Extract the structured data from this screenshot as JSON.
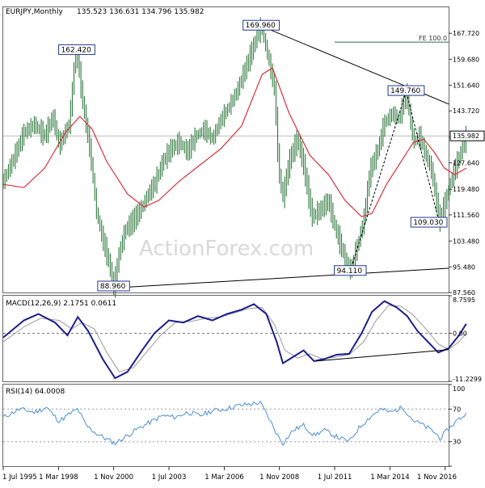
{
  "header": {
    "symbol": "EURJPY,Monthly",
    "ohlc": "135.523 136.631 134.796 135.982"
  },
  "watermark": "ActionForex.com",
  "chart_data": [
    {
      "type": "line",
      "subtype": "ohlc-monthly-with-sma",
      "title": "EURJPY,Monthly",
      "x_start": 1995.5,
      "x_end": 2017.0,
      "ylim": [
        87.56,
        175.76
      ],
      "y_ticks": [
        "167.720",
        "159.680",
        "151.640",
        "143.720",
        "135.600",
        "127.640",
        "119.480",
        "111.560",
        "103.480",
        "95.480",
        "87.560"
      ],
      "y_tick_values": [
        167.72,
        159.68,
        151.64,
        143.72,
        135.6,
        127.64,
        119.48,
        111.56,
        103.48,
        95.48,
        87.56
      ],
      "last_price": "135.982",
      "last_price_value": 135.982,
      "fe_label": "FE 100.0",
      "fe_level": 165.0,
      "price_series": [
        [
          1995.5,
          122.0
        ],
        [
          1996.0,
          129.0
        ],
        [
          1996.5,
          137.0
        ],
        [
          1997.0,
          139.5
        ],
        [
          1997.5,
          136.0
        ],
        [
          1997.9,
          142.0
        ],
        [
          1998.2,
          133.0
        ],
        [
          1998.7,
          140.0
        ],
        [
          1998.9,
          156.0
        ],
        [
          1999.05,
          162.42
        ],
        [
          1999.3,
          148.0
        ],
        [
          1999.7,
          131.0
        ],
        [
          2000.0,
          112.5
        ],
        [
          2000.3,
          104.0
        ],
        [
          2000.6,
          97.0
        ],
        [
          2000.83,
          88.96
        ],
        [
          2001.1,
          100.0
        ],
        [
          2001.4,
          107.0
        ],
        [
          2001.8,
          110.0
        ],
        [
          2002.2,
          114.0
        ],
        [
          2002.5,
          118.0
        ],
        [
          2002.8,
          121.0
        ],
        [
          2003.2,
          128.0
        ],
        [
          2003.6,
          132.0
        ],
        [
          2004.0,
          134.0
        ],
        [
          2004.4,
          131.0
        ],
        [
          2004.8,
          136.0
        ],
        [
          2005.2,
          138.0
        ],
        [
          2005.6,
          135.0
        ],
        [
          2006.0,
          141.0
        ],
        [
          2006.4,
          145.0
        ],
        [
          2006.8,
          150.0
        ],
        [
          2007.2,
          157.0
        ],
        [
          2007.6,
          164.0
        ],
        [
          2007.95,
          169.96
        ],
        [
          2008.3,
          160.0
        ],
        [
          2008.6,
          150.0
        ],
        [
          2008.8,
          125.0
        ],
        [
          2009.0,
          117.0
        ],
        [
          2009.3,
          128.0
        ],
        [
          2009.7,
          135.0
        ],
        [
          2010.0,
          127.0
        ],
        [
          2010.4,
          111.0
        ],
        [
          2010.8,
          113.0
        ],
        [
          2011.2,
          116.0
        ],
        [
          2011.5,
          108.0
        ],
        [
          2011.9,
          100.0
        ],
        [
          2012.25,
          94.11
        ],
        [
          2012.6,
          102.0
        ],
        [
          2012.9,
          110.0
        ],
        [
          2013.2,
          125.0
        ],
        [
          2013.6,
          132.0
        ],
        [
          2013.9,
          140.0
        ],
        [
          2014.3,
          143.0
        ],
        [
          2014.6,
          141.0
        ],
        [
          2014.95,
          149.76
        ],
        [
          2015.3,
          134.0
        ],
        [
          2015.6,
          136.0
        ],
        [
          2015.9,
          130.0
        ],
        [
          2016.2,
          125.0
        ],
        [
          2016.55,
          109.03
        ],
        [
          2016.9,
          117.0
        ],
        [
          2017.2,
          124.0
        ],
        [
          2017.6,
          131.0
        ],
        [
          2017.85,
          135.982
        ]
      ],
      "sma_series": [
        [
          1995.5,
          121.0
        ],
        [
          1996.5,
          120.0
        ],
        [
          1997.5,
          126.0
        ],
        [
          1998.5,
          137.0
        ],
        [
          1999.2,
          142.0
        ],
        [
          1999.8,
          138.0
        ],
        [
          2000.5,
          128.0
        ],
        [
          2001.5,
          118.0
        ],
        [
          2002.3,
          114.0
        ],
        [
          2003.0,
          116.0
        ],
        [
          2004.0,
          122.0
        ],
        [
          2005.0,
          127.0
        ],
        [
          2006.0,
          132.0
        ],
        [
          2007.0,
          139.0
        ],
        [
          2008.0,
          155.0
        ],
        [
          2008.5,
          157.0
        ],
        [
          2009.3,
          143.0
        ],
        [
          2010.3,
          130.0
        ],
        [
          2011.2,
          124.0
        ],
        [
          2012.0,
          116.0
        ],
        [
          2012.8,
          111.0
        ],
        [
          2013.3,
          112.0
        ],
        [
          2014.0,
          121.0
        ],
        [
          2014.7,
          128.0
        ],
        [
          2015.3,
          134.0
        ],
        [
          2015.8,
          135.0
        ],
        [
          2016.3,
          131.0
        ],
        [
          2016.8,
          126.0
        ],
        [
          2017.3,
          124.0
        ],
        [
          2017.85,
          126.0
        ]
      ],
      "trendlines": [
        {
          "name": "upper",
          "points": [
            [
              2007.95,
              169.96
            ],
            [
              2019.0,
              140.5
            ]
          ]
        },
        {
          "name": "lower",
          "points": [
            [
              2000.83,
              88.96
            ],
            [
              2019.0,
              95.8
            ]
          ]
        }
      ],
      "projection": [
        [
          2012.25,
          94.11
        ],
        [
          2014.95,
          149.76
        ],
        [
          2016.55,
          109.03
        ]
      ],
      "annotations": [
        {
          "text": "162.420",
          "x": 1999.05,
          "y": 162.42
        },
        {
          "text": "169.960",
          "x": 2007.95,
          "y": 169.96
        },
        {
          "text": "149.760",
          "x": 2014.95,
          "y": 149.76
        },
        {
          "text": "109.030",
          "x": 2016.55,
          "y": 109.03
        },
        {
          "text": "94.110",
          "x": 2012.25,
          "y": 94.11
        },
        {
          "text": "88.960",
          "x": 2000.83,
          "y": 88.96
        }
      ]
    },
    {
      "type": "line",
      "title": "MACD(12,26,9) 2.1751 0.0611",
      "ylim": [
        -11.2299,
        8.7595
      ],
      "y_ticks": [
        "8.7595",
        "0.00",
        "-11.2299"
      ],
      "y_tick_values": [
        8.7595,
        0.0,
        -11.2299
      ],
      "macd_series": [
        [
          1995.5,
          -1.0
        ],
        [
          1996.5,
          3.0
        ],
        [
          1997.2,
          4.5
        ],
        [
          1998.0,
          2.5
        ],
        [
          1998.6,
          -0.5
        ],
        [
          1999.1,
          3.8
        ],
        [
          1999.6,
          0.5
        ],
        [
          2000.3,
          -6.0
        ],
        [
          2000.9,
          -10.5
        ],
        [
          2001.5,
          -9.0
        ],
        [
          2002.2,
          -4.0
        ],
        [
          2002.8,
          0.0
        ],
        [
          2003.5,
          3.0
        ],
        [
          2004.2,
          2.5
        ],
        [
          2004.9,
          4.0
        ],
        [
          2005.6,
          3.0
        ],
        [
          2006.3,
          4.5
        ],
        [
          2007.0,
          5.5
        ],
        [
          2007.6,
          6.8
        ],
        [
          2008.2,
          4.5
        ],
        [
          2008.7,
          -2.0
        ],
        [
          2009.0,
          -7.0
        ],
        [
          2009.5,
          -5.5
        ],
        [
          2010.0,
          -4.0
        ],
        [
          2010.5,
          -6.5
        ],
        [
          2011.0,
          -6.0
        ],
        [
          2011.6,
          -5.0
        ],
        [
          2012.2,
          -4.8
        ],
        [
          2012.8,
          0.0
        ],
        [
          2013.3,
          5.0
        ],
        [
          2013.9,
          7.5
        ],
        [
          2014.5,
          6.0
        ],
        [
          2015.0,
          4.0
        ],
        [
          2015.5,
          0.5
        ],
        [
          2016.0,
          -2.0
        ],
        [
          2016.5,
          -4.5
        ],
        [
          2017.0,
          -3.5
        ],
        [
          2017.5,
          -0.5
        ],
        [
          2017.85,
          2.2
        ]
      ],
      "signal_series": [
        [
          1995.5,
          -2.0
        ],
        [
          1996.5,
          1.5
        ],
        [
          1997.3,
          3.5
        ],
        [
          1998.2,
          3.0
        ],
        [
          1998.8,
          1.0
        ],
        [
          1999.3,
          2.5
        ],
        [
          1999.9,
          1.0
        ],
        [
          2000.5,
          -4.5
        ],
        [
          2001.1,
          -9.0
        ],
        [
          2001.8,
          -8.0
        ],
        [
          2002.4,
          -4.5
        ],
        [
          2003.1,
          -0.5
        ],
        [
          2003.8,
          2.5
        ],
        [
          2004.6,
          2.8
        ],
        [
          2005.3,
          3.5
        ],
        [
          2006.0,
          3.8
        ],
        [
          2006.7,
          4.8
        ],
        [
          2007.4,
          5.8
        ],
        [
          2008.0,
          6.0
        ],
        [
          2008.6,
          2.0
        ],
        [
          2009.1,
          -4.0
        ],
        [
          2009.7,
          -5.8
        ],
        [
          2010.3,
          -4.8
        ],
        [
          2010.9,
          -6.0
        ],
        [
          2011.5,
          -5.6
        ],
        [
          2012.2,
          -5.0
        ],
        [
          2012.9,
          -2.0
        ],
        [
          2013.5,
          3.0
        ],
        [
          2014.1,
          6.5
        ],
        [
          2014.7,
          6.3
        ],
        [
          2015.3,
          4.2
        ],
        [
          2015.9,
          1.0
        ],
        [
          2016.5,
          -2.5
        ],
        [
          2017.0,
          -3.8
        ],
        [
          2017.5,
          -2.0
        ],
        [
          2017.85,
          0.06
        ]
      ],
      "trendline": [
        [
          2010.6,
          -6.5
        ],
        [
          2019.0,
          -3.0
        ]
      ]
    },
    {
      "type": "line",
      "title": "RSI(14) 64.0008",
      "ylim": [
        0,
        100
      ],
      "y_ticks": [
        "100",
        "70",
        "30",
        "0"
      ],
      "y_tick_values": [
        100,
        70,
        30,
        0
      ],
      "levels": [
        70,
        30
      ],
      "rsi_series": [
        [
          1995.5,
          60
        ],
        [
          1996.3,
          70
        ],
        [
          1997.0,
          66
        ],
        [
          1997.6,
          72
        ],
        [
          1998.2,
          55
        ],
        [
          1998.7,
          64
        ],
        [
          1999.1,
          70
        ],
        [
          1999.5,
          50
        ],
        [
          2000.0,
          40
        ],
        [
          2000.5,
          33
        ],
        [
          2000.9,
          28
        ],
        [
          2001.4,
          36
        ],
        [
          2002.0,
          46
        ],
        [
          2002.6,
          54
        ],
        [
          2003.2,
          62
        ],
        [
          2003.8,
          60
        ],
        [
          2004.4,
          66
        ],
        [
          2005.0,
          62
        ],
        [
          2005.6,
          68
        ],
        [
          2006.2,
          70
        ],
        [
          2006.8,
          74
        ],
        [
          2007.4,
          76
        ],
        [
          2007.9,
          78
        ],
        [
          2008.3,
          60
        ],
        [
          2008.7,
          40
        ],
        [
          2009.0,
          28
        ],
        [
          2009.5,
          44
        ],
        [
          2010.0,
          50
        ],
        [
          2010.5,
          38
        ],
        [
          2011.0,
          44
        ],
        [
          2011.6,
          36
        ],
        [
          2012.2,
          30
        ],
        [
          2012.7,
          48
        ],
        [
          2013.2,
          60
        ],
        [
          2013.7,
          70
        ],
        [
          2014.2,
          66
        ],
        [
          2014.8,
          72
        ],
        [
          2015.3,
          56
        ],
        [
          2015.8,
          50
        ],
        [
          2016.3,
          42
        ],
        [
          2016.6,
          34
        ],
        [
          2017.0,
          46
        ],
        [
          2017.4,
          56
        ],
        [
          2017.85,
          64
        ]
      ]
    }
  ],
  "x_axis": {
    "labels": [
      "1 Jul 1995",
      "1 Mar 1998",
      "1 Nov 2000",
      "1 Jul 2003",
      "1 Mar 2006",
      "1 Nov 2008",
      "1 Jul 2011",
      "1 Mar 2014",
      "1 Nov 2016"
    ],
    "values": [
      1995.5,
      1998.17,
      2000.83,
      2003.5,
      2006.17,
      2008.83,
      2011.5,
      2014.17,
      2016.83
    ]
  },
  "colors": {
    "price": "#1f6e2e",
    "sma": "#d8313a",
    "macd": "#1a1e8c",
    "signal": "#9a9a9a",
    "rsi": "#4a8fd6",
    "trend": "#000000",
    "fe_line": "#2f6e4a",
    "grid": "#bcbcbc"
  }
}
